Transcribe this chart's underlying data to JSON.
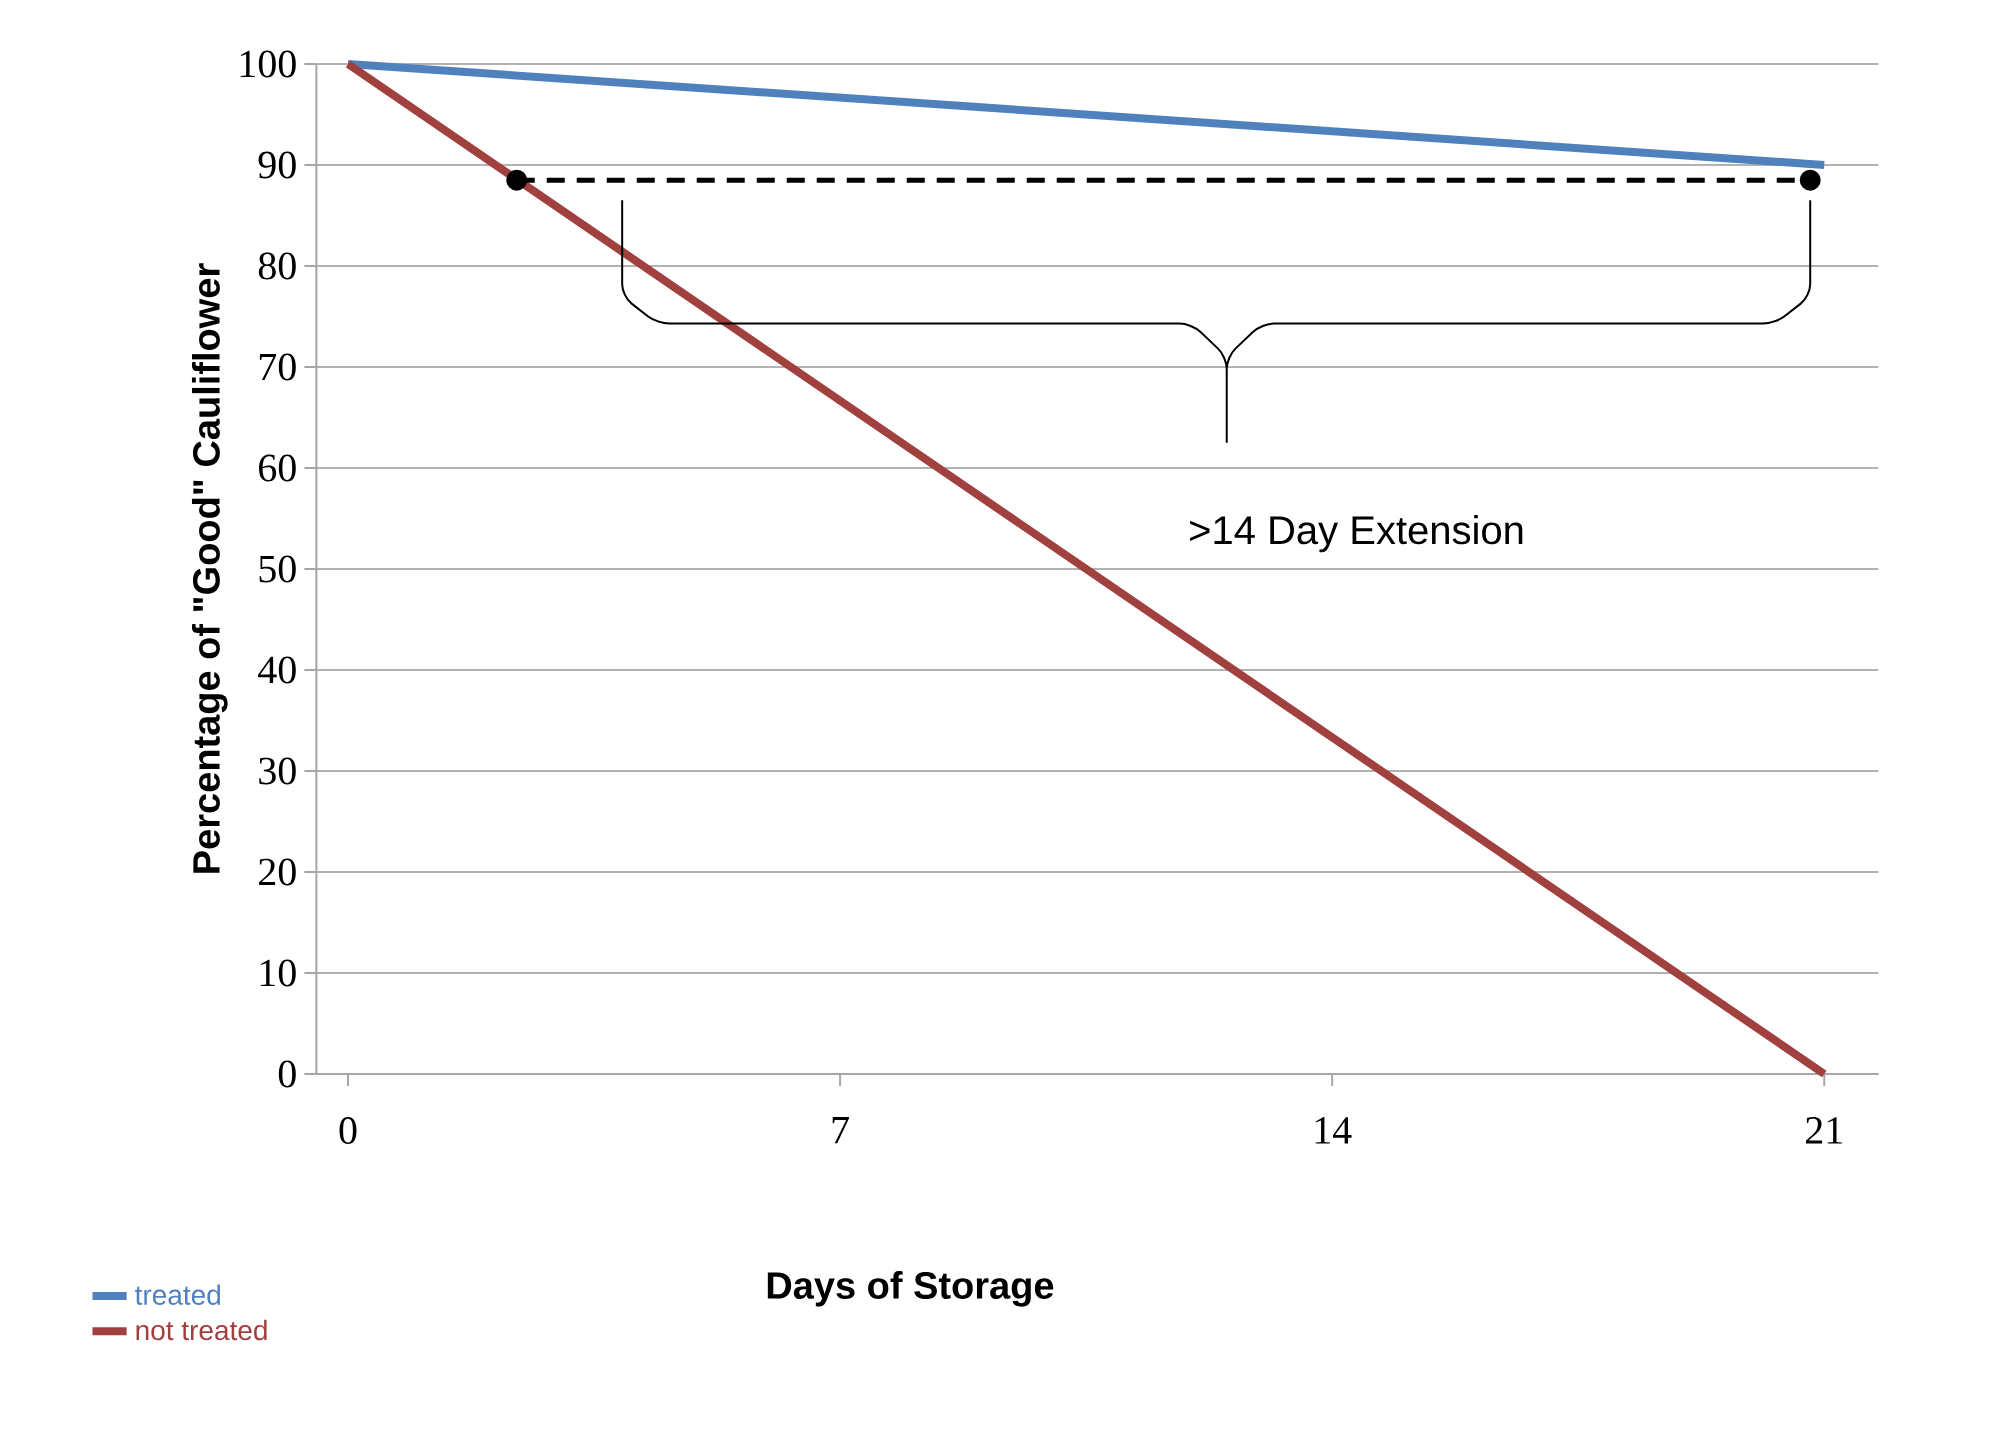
{
  "chart_data": {
    "type": "line",
    "xlabel": "Days of Storage",
    "ylabel": "Percentage of \"Good\" Cauliflower",
    "xlim": [
      -0.45,
      21.77
    ],
    "ylim": [
      0,
      100
    ],
    "xticks": [
      0,
      7,
      14,
      21
    ],
    "yticks": [
      0,
      10,
      20,
      30,
      40,
      50,
      60,
      70,
      80,
      90,
      100
    ],
    "grid": "y",
    "legend": "bottom left",
    "line_style": "solid",
    "series": [
      {
        "name": "treated",
        "color": "#4f81bd",
        "x": [
          0,
          21
        ],
        "values": [
          100,
          90
        ]
      },
      {
        "name": "not treated",
        "color": "#a0403f",
        "x": [
          0,
          21
        ],
        "values": [
          100,
          0
        ]
      },
      {
        "type": "line",
        "color": "#000000",
        "line_style": "dashed",
        "marker": "circle",
        "x": [
          2.4,
          20.8
        ],
        "values": [
          88.5,
          88.5
        ]
      }
    ],
    "annotations": [
      ">14 Day Extension"
    ]
  }
}
